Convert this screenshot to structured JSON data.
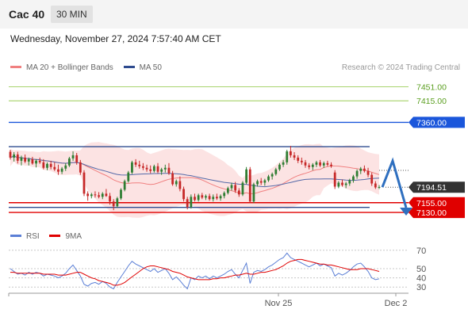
{
  "header": {
    "title": "Cac 40",
    "timeframe": "30 MIN",
    "timestamp": "Wednesday, November 27, 2024 7:57:40 AM CET"
  },
  "legend": {
    "items": [
      {
        "label": "MA 20 + Bollinger Bands",
        "color": "#f08080"
      },
      {
        "label": "MA 50",
        "color": "#2e4b8f"
      }
    ],
    "credit": "Research © 2024 Trading Central"
  },
  "rsi_legend": {
    "items": [
      {
        "label": "RSI",
        "color": "#5b7fd6"
      },
      {
        "label": "9MA",
        "color": "#e00000"
      }
    ]
  },
  "chart_data": [
    {
      "type": "candlestick",
      "title": "Cac 40",
      "ylim": [
        7110,
        7470
      ],
      "x_labels": [
        "Nov 25",
        "Dec 2"
      ],
      "levels": [
        {
          "value": 7451.0,
          "label": "7451.00",
          "color": "#8cc63f",
          "kind": "resistance-target"
        },
        {
          "value": 7415.0,
          "label": "7415.00",
          "color": "#8cc63f",
          "kind": "resistance-target"
        },
        {
          "value": 7360.0,
          "label": "7360.00",
          "color": "#1a56db",
          "kind": "pivot"
        },
        {
          "value": 7194.51,
          "label": "7194.51",
          "color": "#333333",
          "kind": "last-price"
        },
        {
          "value": 7155.0,
          "label": "7155.00",
          "color": "#e00000",
          "kind": "support"
        },
        {
          "value": 7130.0,
          "label": "7130.00",
          "color": "#e00000",
          "kind": "support"
        }
      ],
      "trendlines": [
        {
          "value": 7298,
          "color": "#2e4b8f"
        },
        {
          "value": 7143,
          "color": "#2e4b8f"
        }
      ],
      "candles": [
        [
          7285,
          7290,
          7265,
          7270
        ],
        [
          7270,
          7284,
          7260,
          7278
        ],
        [
          7278,
          7285,
          7255,
          7262
        ],
        [
          7262,
          7275,
          7250,
          7270
        ],
        [
          7270,
          7278,
          7256,
          7260
        ],
        [
          7260,
          7270,
          7250,
          7266
        ],
        [
          7266,
          7272,
          7252,
          7255
        ],
        [
          7255,
          7266,
          7245,
          7262
        ],
        [
          7262,
          7270,
          7254,
          7258
        ],
        [
          7258,
          7266,
          7240,
          7244
        ],
        [
          7244,
          7258,
          7238,
          7254
        ],
        [
          7254,
          7262,
          7240,
          7246
        ],
        [
          7246,
          7258,
          7236,
          7240
        ],
        [
          7240,
          7252,
          7226,
          7234
        ],
        [
          7234,
          7246,
          7228,
          7242
        ],
        [
          7242,
          7256,
          7236,
          7250
        ],
        [
          7250,
          7272,
          7246,
          7268
        ],
        [
          7268,
          7286,
          7262,
          7276
        ],
        [
          7276,
          7282,
          7252,
          7258
        ],
        [
          7258,
          7264,
          7226,
          7232
        ],
        [
          7232,
          7238,
          7172,
          7178
        ],
        [
          7178,
          7184,
          7160,
          7172
        ],
        [
          7172,
          7180,
          7166,
          7176
        ],
        [
          7176,
          7184,
          7168,
          7174
        ],
        [
          7174,
          7182,
          7166,
          7170
        ],
        [
          7170,
          7182,
          7164,
          7178
        ],
        [
          7178,
          7190,
          7170,
          7172
        ],
        [
          7172,
          7180,
          7150,
          7158
        ],
        [
          7158,
          7164,
          7136,
          7146
        ],
        [
          7146,
          7170,
          7142,
          7166
        ],
        [
          7166,
          7192,
          7162,
          7188
        ],
        [
          7188,
          7214,
          7184,
          7210
        ],
        [
          7210,
          7236,
          7206,
          7232
        ],
        [
          7232,
          7262,
          7228,
          7258
        ],
        [
          7258,
          7266,
          7246,
          7252
        ],
        [
          7252,
          7262,
          7242,
          7248
        ],
        [
          7248,
          7256,
          7238,
          7244
        ],
        [
          7244,
          7252,
          7234,
          7240
        ],
        [
          7240,
          7250,
          7230,
          7236
        ],
        [
          7236,
          7252,
          7232,
          7248
        ],
        [
          7248,
          7256,
          7230,
          7234
        ],
        [
          7234,
          7244,
          7226,
          7240
        ],
        [
          7240,
          7252,
          7232,
          7244
        ],
        [
          7244,
          7256,
          7226,
          7230
        ],
        [
          7230,
          7236,
          7198,
          7202
        ],
        [
          7202,
          7214,
          7196,
          7210
        ],
        [
          7210,
          7222,
          7184,
          7190
        ],
        [
          7190,
          7196,
          7158,
          7164
        ],
        [
          7164,
          7170,
          7138,
          7144
        ],
        [
          7144,
          7176,
          7140,
          7170
        ],
        [
          7170,
          7178,
          7158,
          7162
        ],
        [
          7162,
          7178,
          7158,
          7174
        ],
        [
          7174,
          7180,
          7164,
          7168
        ],
        [
          7168,
          7176,
          7162,
          7172
        ],
        [
          7172,
          7178,
          7160,
          7164
        ],
        [
          7164,
          7176,
          7158,
          7170
        ],
        [
          7170,
          7178,
          7162,
          7166
        ],
        [
          7166,
          7176,
          7160,
          7172
        ],
        [
          7172,
          7184,
          7166,
          7180
        ],
        [
          7180,
          7196,
          7176,
          7192
        ],
        [
          7192,
          7206,
          7186,
          7200
        ],
        [
          7200,
          7208,
          7180,
          7186
        ],
        [
          7186,
          7192,
          7170,
          7176
        ],
        [
          7176,
          7210,
          7172,
          7206
        ],
        [
          7206,
          7246,
          7202,
          7240
        ],
        [
          7240,
          7246,
          7154,
          7158
        ],
        [
          7158,
          7206,
          7154,
          7202
        ],
        [
          7202,
          7214,
          7196,
          7210
        ],
        [
          7210,
          7218,
          7200,
          7206
        ],
        [
          7206,
          7216,
          7198,
          7212
        ],
        [
          7212,
          7226,
          7208,
          7222
        ],
        [
          7222,
          7232,
          7214,
          7228
        ],
        [
          7228,
          7244,
          7224,
          7240
        ],
        [
          7240,
          7256,
          7236,
          7252
        ],
        [
          7252,
          7264,
          7246,
          7258
        ],
        [
          7258,
          7290,
          7252,
          7286
        ],
        [
          7286,
          7300,
          7270,
          7276
        ],
        [
          7276,
          7284,
          7264,
          7270
        ],
        [
          7270,
          7276,
          7256,
          7262
        ],
        [
          7262,
          7270,
          7252,
          7258
        ],
        [
          7258,
          7264,
          7244,
          7250
        ],
        [
          7250,
          7256,
          7240,
          7246
        ],
        [
          7246,
          7256,
          7238,
          7252
        ],
        [
          7252,
          7262,
          7246,
          7258
        ],
        [
          7258,
          7264,
          7246,
          7250
        ],
        [
          7250,
          7260,
          7244,
          7256
        ],
        [
          7256,
          7262,
          7248,
          7252
        ],
        [
          7252,
          7258,
          7244,
          7248
        ],
        [
          7232,
          7238,
          7190,
          7196
        ],
        [
          7196,
          7210,
          7192,
          7206
        ],
        [
          7206,
          7214,
          7196,
          7200
        ],
        [
          7200,
          7208,
          7192,
          7204
        ],
        [
          7204,
          7216,
          7198,
          7212
        ],
        [
          7212,
          7226,
          7206,
          7222
        ],
        [
          7222,
          7240,
          7216,
          7236
        ],
        [
          7236,
          7246,
          7228,
          7242
        ],
        [
          7242,
          7250,
          7232,
          7236
        ],
        [
          7236,
          7244,
          7220,
          7226
        ],
        [
          7226,
          7232,
          7198,
          7204
        ],
        [
          7204,
          7210,
          7190,
          7194
        ],
        [
          7194,
          7200,
          7190,
          7195
        ]
      ]
    },
    {
      "type": "line",
      "title": "RSI",
      "ylim": [
        25,
        75
      ],
      "y_ticks": [
        70,
        50,
        40,
        30
      ],
      "series": [
        {
          "name": "RSI",
          "color": "#5b7fd6",
          "values": [
            50,
            47,
            44,
            45,
            43,
            46,
            44,
            46,
            45,
            42,
            44,
            43,
            42,
            40,
            42,
            45,
            50,
            54,
            48,
            42,
            33,
            31,
            34,
            35,
            33,
            36,
            34,
            30,
            28,
            35,
            41,
            47,
            53,
            58,
            55,
            53,
            51,
            49,
            47,
            50,
            46,
            48,
            50,
            45,
            38,
            41,
            37,
            32,
            28,
            40,
            38,
            42,
            40,
            42,
            39,
            42,
            40,
            42,
            44,
            47,
            49,
            44,
            40,
            48,
            56,
            34,
            46,
            48,
            47,
            49,
            52,
            54,
            57,
            60,
            62,
            67,
            62,
            60,
            58,
            56,
            54,
            52,
            54,
            56,
            53,
            55,
            53,
            51,
            42,
            45,
            43,
            45,
            48,
            52,
            55,
            56,
            52,
            47,
            40,
            38,
            39
          ]
        },
        {
          "name": "9MA",
          "color": "#e00000",
          "values": [
            46,
            46,
            45,
            45,
            45,
            45,
            45,
            45,
            45,
            44,
            44,
            44,
            44,
            43,
            43,
            43,
            44,
            45,
            46,
            46,
            44,
            42,
            40,
            39,
            37,
            36,
            35,
            34,
            32,
            32,
            33,
            35,
            38,
            41,
            44,
            47,
            50,
            52,
            53,
            53,
            52,
            51,
            50,
            49,
            47,
            46,
            45,
            43,
            41,
            40,
            39,
            38,
            38,
            38,
            38,
            39,
            39,
            40,
            40,
            41,
            42,
            43,
            43,
            44,
            45,
            44,
            44,
            45,
            46,
            46,
            47,
            48,
            49,
            51,
            53,
            56,
            58,
            59,
            60,
            60,
            59,
            58,
            57,
            56,
            55,
            55,
            54,
            54,
            53,
            52,
            51,
            50,
            49,
            49,
            49,
            50,
            50,
            50,
            49,
            48,
            47
          ]
        }
      ]
    }
  ],
  "projection": {
    "color": "#2e6fbf"
  }
}
